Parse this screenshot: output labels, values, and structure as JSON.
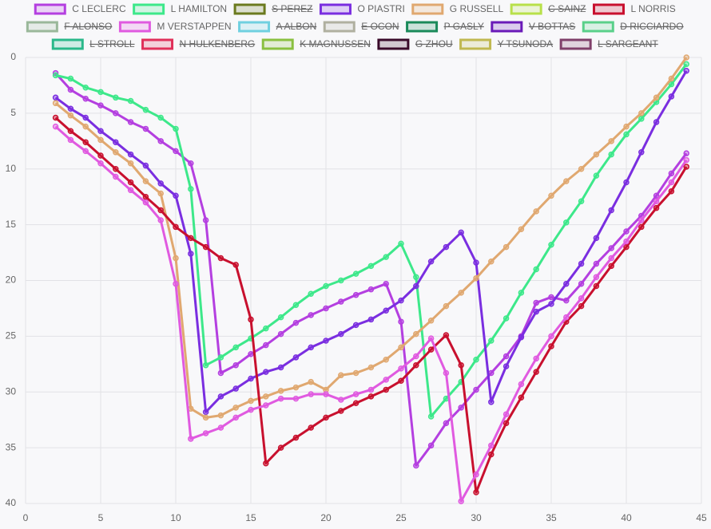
{
  "chart_data": {
    "type": "line",
    "x": [
      2,
      3,
      4,
      5,
      6,
      7,
      8,
      9,
      10,
      11,
      12,
      13,
      14,
      15,
      16,
      17,
      18,
      19,
      20,
      21,
      22,
      23,
      24,
      25,
      26,
      27,
      28,
      29,
      30,
      31,
      32,
      33,
      34,
      35,
      36,
      37,
      38,
      39,
      40,
      41,
      42,
      43,
      44
    ],
    "xlim": [
      0,
      45
    ],
    "xticks": [
      0,
      5,
      10,
      15,
      20,
      25,
      30,
      35,
      40,
      45
    ],
    "ylim": [
      0,
      40
    ],
    "yticks": [
      0,
      5,
      10,
      15,
      20,
      25,
      30,
      35,
      40
    ],
    "yreverse": true,
    "grid": true,
    "legend": "top",
    "series": [
      {
        "name": "C LECLERC",
        "color": "#b43fe0",
        "values": [
          1.4,
          2.9,
          3.7,
          4.3,
          5.0,
          5.8,
          6.4,
          7.5,
          8.4,
          9.5,
          14.6,
          28.3,
          27.6,
          26.6,
          25.8,
          24.8,
          23.8,
          23.1,
          22.5,
          21.9,
          21.3,
          20.8,
          20.3,
          23.7,
          36.6,
          34.8,
          32.8,
          31.4,
          29.8,
          28.3,
          26.8,
          25.0,
          22.0,
          21.5,
          21.8,
          20.3,
          18.5,
          17.1,
          15.6,
          14.2,
          12.4,
          10.4,
          8.6
        ]
      },
      {
        "name": "L HAMILTON",
        "color": "#3de88a",
        "values": [
          1.6,
          1.9,
          2.7,
          3.1,
          3.6,
          3.9,
          4.7,
          5.4,
          6.4,
          11.8,
          27.6,
          26.9,
          26.0,
          25.2,
          24.3,
          23.3,
          22.2,
          21.2,
          20.5,
          20.0,
          19.4,
          18.7,
          17.9,
          16.7,
          19.7,
          32.2,
          30.6,
          29.1,
          27.1,
          25.4,
          23.4,
          21.1,
          19.0,
          16.8,
          14.8,
          12.9,
          10.6,
          8.7,
          6.9,
          5.5,
          4.0,
          2.4,
          0.6
        ]
      },
      {
        "name": "S PEREZ",
        "color": "#6b7a1e",
        "hidden": true
      },
      {
        "name": "O PIASTRI",
        "color": "#7a2ee0",
        "values": [
          3.6,
          4.6,
          5.4,
          6.6,
          7.6,
          8.7,
          9.7,
          11.3,
          12.4,
          17.6,
          31.8,
          30.4,
          29.7,
          28.8,
          28.2,
          27.8,
          26.9,
          26.0,
          25.4,
          24.8,
          24.0,
          23.5,
          22.7,
          21.8,
          20.5,
          18.3,
          17.0,
          15.7,
          18.4,
          30.9,
          27.7,
          25.1,
          22.8,
          22.1,
          20.3,
          18.5,
          16.2,
          13.7,
          11.2,
          8.5,
          5.8,
          3.5,
          1.2
        ]
      },
      {
        "name": "G RUSSELL",
        "color": "#e0a870",
        "values": [
          4.1,
          5.2,
          6.2,
          7.4,
          8.5,
          9.5,
          11.1,
          12.2,
          18.0,
          31.5,
          32.3,
          32.1,
          31.4,
          30.8,
          30.4,
          29.9,
          29.6,
          29.1,
          29.8,
          28.5,
          28.3,
          27.8,
          27.1,
          26.0,
          24.8,
          23.6,
          22.3,
          21.1,
          19.8,
          18.3,
          17.0,
          15.4,
          13.8,
          12.4,
          11.1,
          10.0,
          8.7,
          7.5,
          6.2,
          5.0,
          3.6,
          1.9,
          0.0
        ]
      },
      {
        "name": "C SAINZ",
        "color": "#b8e04a",
        "hidden": true
      },
      {
        "name": "L NORRIS",
        "color": "#c8102e",
        "values": [
          5.4,
          6.6,
          7.6,
          8.8,
          10.0,
          11.2,
          12.5,
          13.7,
          15.2,
          16.2,
          17.0,
          18.0,
          18.6,
          23.5,
          36.4,
          35.0,
          34.1,
          33.2,
          32.3,
          31.7,
          31.0,
          30.4,
          29.8,
          29.0,
          27.6,
          26.2,
          24.9,
          27.6,
          39.0,
          35.6,
          32.8,
          30.5,
          28.2,
          25.9,
          23.7,
          22.3,
          20.5,
          18.7,
          17.0,
          15.2,
          13.5,
          12.0,
          9.8
        ]
      },
      {
        "name": "F ALONSO",
        "color": "#9ab89a",
        "hidden": true
      },
      {
        "name": "M VERSTAPPEN",
        "color": "#e05ae0",
        "values": [
          6.2,
          7.4,
          8.4,
          9.5,
          10.7,
          11.9,
          13.0,
          14.6,
          20.3,
          34.2,
          33.7,
          33.2,
          32.3,
          31.6,
          31.2,
          30.6,
          30.6,
          30.2,
          30.2,
          30.7,
          30.2,
          29.8,
          28.9,
          27.9,
          26.8,
          25.2,
          28.3,
          39.8,
          37.4,
          34.8,
          32.0,
          29.3,
          27.0,
          25.0,
          23.3,
          21.6,
          19.7,
          18.0,
          16.5,
          14.6,
          12.9,
          11.2,
          9.2
        ]
      },
      {
        "name": "A ALBON",
        "color": "#70d0e0",
        "hidden": true
      },
      {
        "name": "E OCON",
        "color": "#b0b0a0",
        "hidden": true
      },
      {
        "name": "P GASLY",
        "color": "#1a8a5a",
        "hidden": true
      },
      {
        "name": "V BOTTAS",
        "color": "#6a1ab8",
        "hidden": true
      },
      {
        "name": "D RICCIARDO",
        "color": "#5ad08a",
        "hidden": true
      },
      {
        "name": "L STROLL",
        "color": "#2ab88a",
        "hidden": true
      },
      {
        "name": "N HULKENBERG",
        "color": "#e0305a",
        "hidden": true
      },
      {
        "name": "K MAGNUSSEN",
        "color": "#8ac040",
        "hidden": true
      },
      {
        "name": "G ZHOU",
        "color": "#3a0a2a",
        "hidden": true
      },
      {
        "name": "Y TSUNODA",
        "color": "#c0b850",
        "hidden": true
      },
      {
        "name": "L SARGEANT",
        "color": "#80406a",
        "hidden": true
      }
    ]
  }
}
